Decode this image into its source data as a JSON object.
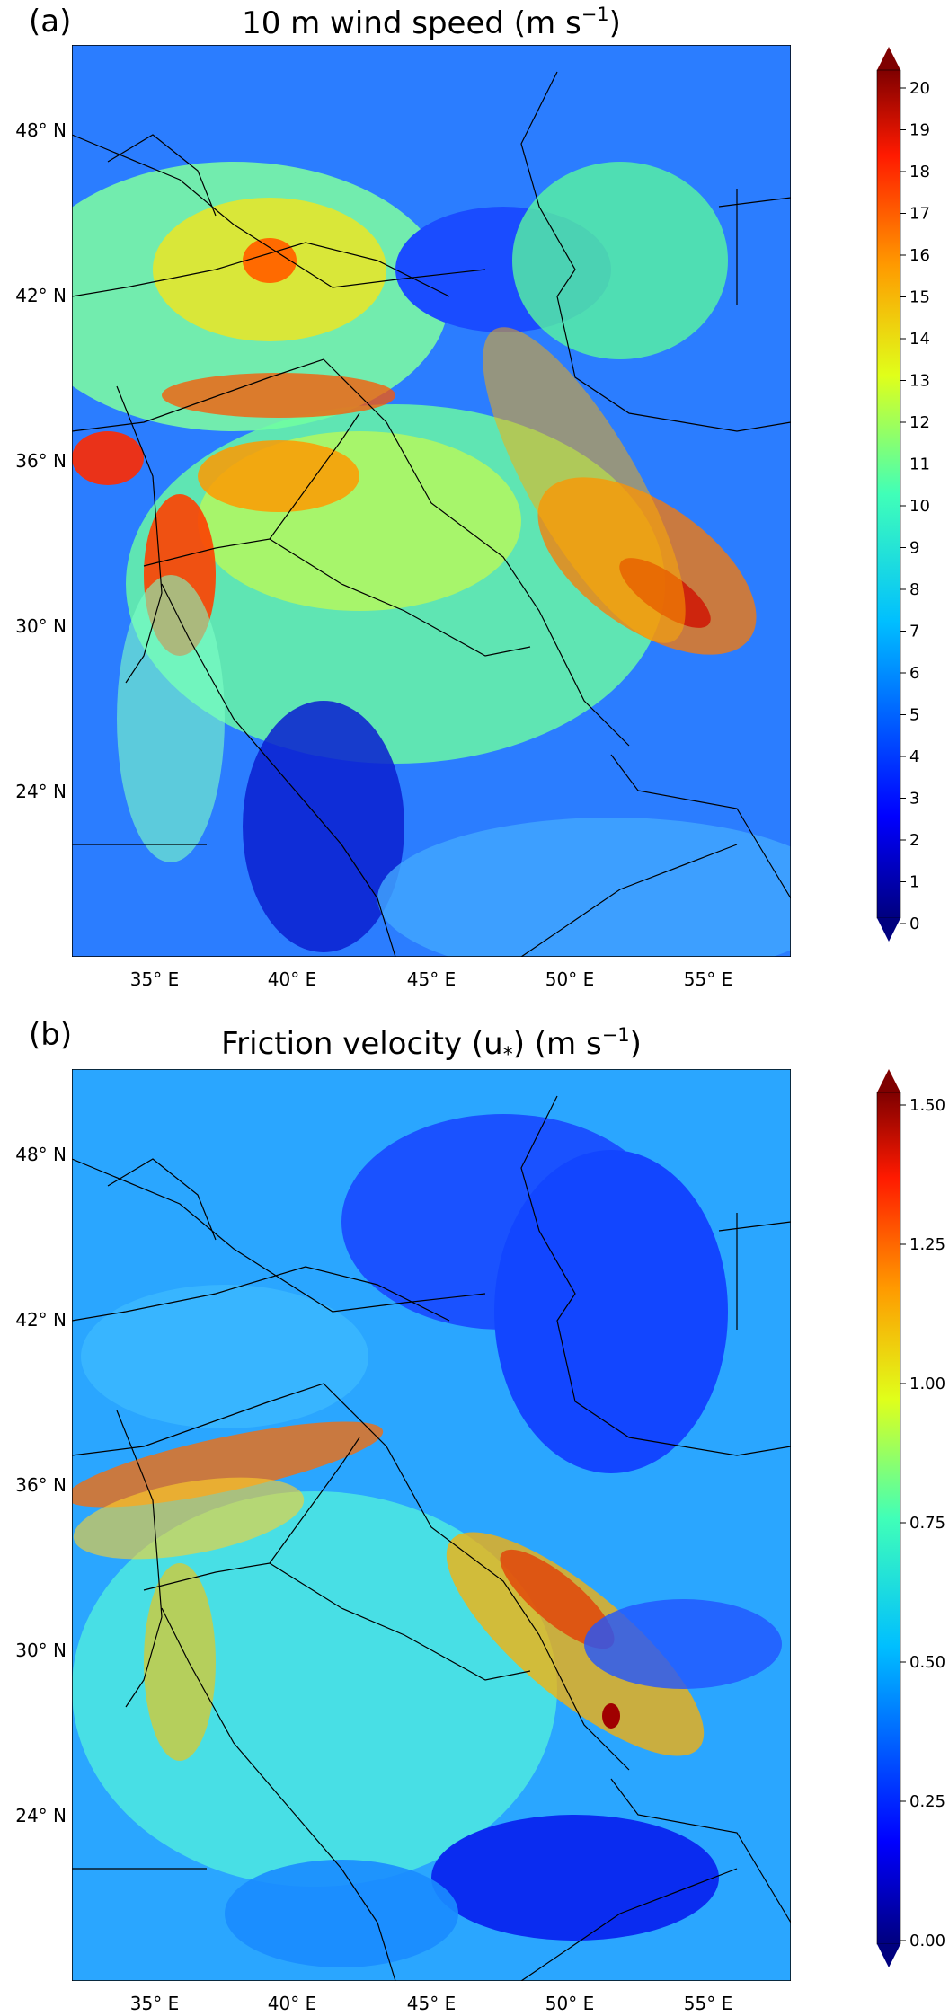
{
  "panels": [
    {
      "id": "a",
      "letter": "(a)",
      "title_main": "10 m wind speed (m s",
      "title_sup": "−1",
      "title_end": ")",
      "lat_ticks": [
        "48° N",
        "42° N",
        "36° N",
        "30° N",
        "24° N"
      ],
      "lon_ticks": [
        "35° E",
        "40° E",
        "45° E",
        "50° E",
        "55° E"
      ],
      "colorbar": {
        "min": 0,
        "max": 20,
        "labels": [
          "20",
          "19",
          "18",
          "17",
          "16",
          "15",
          "14",
          "13",
          "12",
          "11",
          "10",
          "9",
          "8",
          "7",
          "6",
          "5",
          "4",
          "3",
          "2",
          "1",
          "0"
        ],
        "extend": "both"
      }
    },
    {
      "id": "b",
      "letter": "(b)",
      "title_main": "Friction velocity (u",
      "title_sub": "*",
      "title_mid": ") (m s",
      "title_sup": "−1",
      "title_end": ")",
      "lat_ticks": [
        "48° N",
        "42° N",
        "36° N",
        "30° N",
        "24° N"
      ],
      "lon_ticks": [
        "35° E",
        "40° E",
        "45° E",
        "50° E",
        "55° E"
      ],
      "colorbar": {
        "min": 0,
        "max": 1.5,
        "labels": [
          "1.50",
          "1.25",
          "1.00",
          "0.75",
          "0.50",
          "0.25",
          "0.00"
        ],
        "extend": "both"
      }
    }
  ],
  "colormap": "jet",
  "colors": {
    "background": "#ffffff",
    "border": "#000000"
  }
}
